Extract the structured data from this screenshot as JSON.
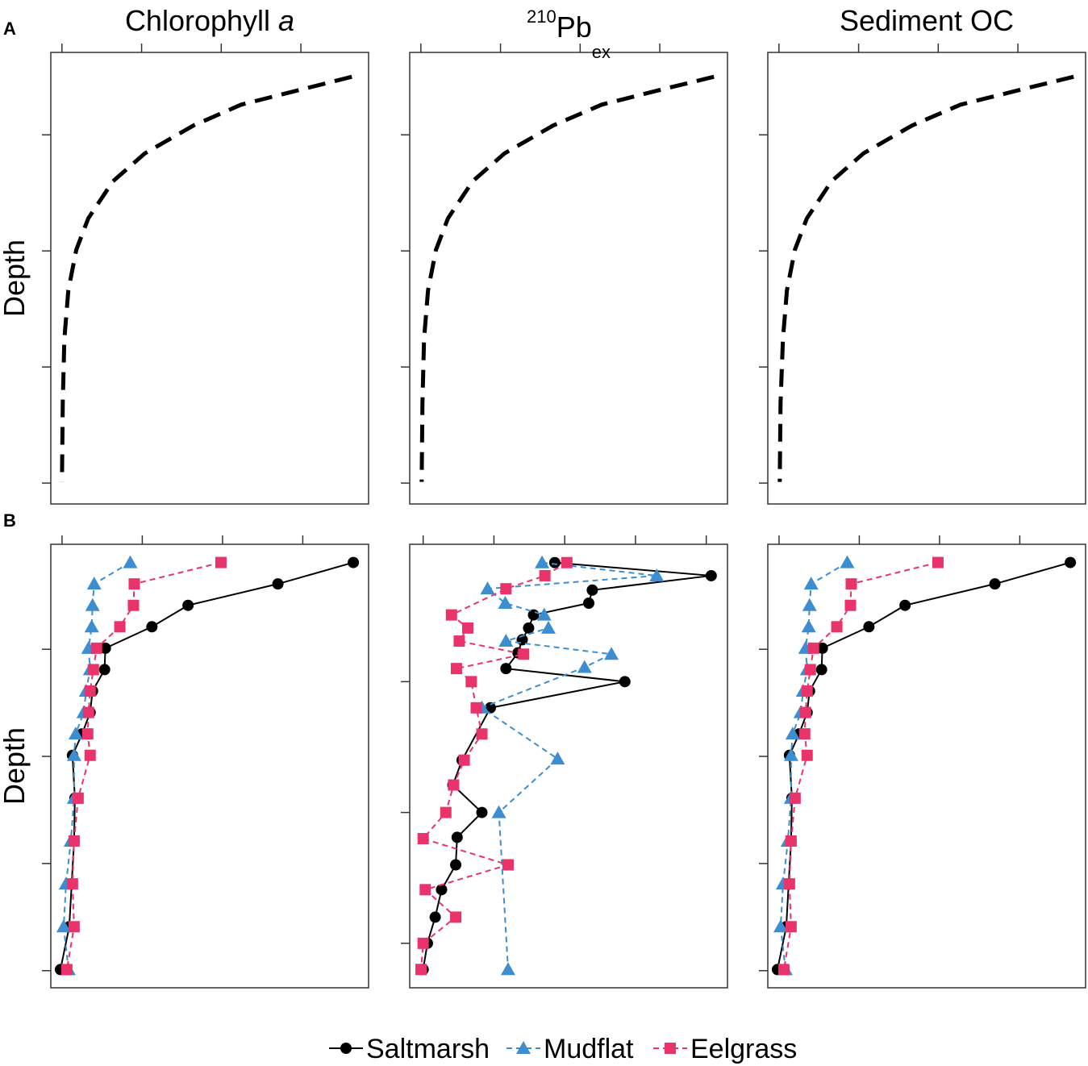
{
  "chart_data": [
    {
      "type": "line",
      "panel_label": "A",
      "title": [
        "Chlorophyll ",
        "a"
      ],
      "title_style": [
        "normal",
        "italic"
      ],
      "ylabel": "Depth",
      "xlim": [
        -0.14,
        3.85
      ],
      "xticks": [
        0,
        1,
        2,
        3
      ],
      "ylim": [
        0.29,
        4.18
      ],
      "yticks": [
        1,
        2,
        3,
        4
      ],
      "yinvert": true,
      "series": [
        {
          "color": "#000000",
          "dash": "22,12",
          "linewidth": 5,
          "x": [
            3.64,
            3.06,
            2.25,
            1.65,
            1.04,
            0.64,
            0.33,
            0.18,
            0.08,
            0.03,
            0.01,
            0
          ],
          "y": [
            0.5,
            0.6,
            0.74,
            0.92,
            1.16,
            1.4,
            1.72,
            1.99,
            2.34,
            2.76,
            3.31,
            3.99
          ]
        }
      ]
    },
    {
      "type": "line",
      "title": [
        "210",
        "Pb",
        "ex"
      ],
      "title_style": [
        "super",
        "normal",
        "sub"
      ],
      "xlim": [
        -0.14,
        3.85
      ],
      "xticks": [
        0,
        1,
        2,
        3
      ],
      "ylim": [
        0.29,
        4.18
      ],
      "yticks": [
        1,
        2,
        3,
        4
      ],
      "yinvert": true,
      "series": [
        {
          "color": "#000000",
          "dash": "22,12",
          "linewidth": 5,
          "x": [
            3.68,
            3.08,
            2.27,
            1.66,
            1.05,
            0.65,
            0.34,
            0.19,
            0.09,
            0.04,
            0.02,
            0.01
          ],
          "y": [
            0.5,
            0.6,
            0.74,
            0.92,
            1.16,
            1.4,
            1.72,
            1.99,
            2.34,
            2.76,
            3.31,
            3.99
          ]
        }
      ]
    },
    {
      "type": "line",
      "title": [
        "Sediment OC"
      ],
      "title_style": [
        "normal"
      ],
      "xlim": [
        -0.14,
        3.85
      ],
      "xticks": [
        0,
        1,
        2,
        3
      ],
      "ylim": [
        0.29,
        4.18
      ],
      "yticks": [
        1,
        2,
        3,
        4
      ],
      "yinvert": true,
      "series": [
        {
          "color": "#000000",
          "dash": "22,12",
          "linewidth": 5,
          "x": [
            3.7,
            3.1,
            2.28,
            1.67,
            1.06,
            0.66,
            0.35,
            0.2,
            0.1,
            0.05,
            0.02,
            0.01
          ],
          "y": [
            0.5,
            0.6,
            0.74,
            0.92,
            1.16,
            1.4,
            1.72,
            1.99,
            2.34,
            2.76,
            3.31,
            3.99
          ]
        }
      ]
    },
    {
      "type": "line",
      "panel_label": "B",
      "ylabel": "Depth",
      "xlim": [
        -0.14,
        3.82
      ],
      "xticks": [
        0,
        1,
        2,
        3
      ],
      "ylim": [
        0.02,
        4.16
      ],
      "yticks": [
        1,
        2,
        3,
        4
      ],
      "yinvert": true,
      "series": [
        {
          "name": "Saltmarsh",
          "color": "#000000",
          "marker": "circle",
          "dash": "none",
          "x": [
            3.63,
            2.69,
            1.57,
            1.12,
            0.54,
            0.53,
            0.38,
            0.35,
            0.25,
            0.13,
            0.16,
            0.15,
            0.12,
            0.09,
            -0.02
          ],
          "y": [
            0.19,
            0.39,
            0.59,
            0.79,
            0.99,
            1.19,
            1.39,
            1.59,
            1.79,
            1.99,
            2.39,
            2.79,
            3.19,
            3.59,
            3.99
          ]
        },
        {
          "name": "Mudflat",
          "color": "#3d8ed0",
          "marker": "triangle",
          "dash": "7,5",
          "x": [
            0.85,
            0.4,
            0.38,
            0.37,
            0.33,
            0.35,
            0.3,
            0.27,
            0.17,
            0.15,
            0.15,
            0.11,
            0.05,
            0.02,
            0.08
          ],
          "y": [
            0.19,
            0.39,
            0.59,
            0.79,
            0.99,
            1.19,
            1.39,
            1.59,
            1.79,
            1.99,
            2.39,
            2.79,
            3.19,
            3.59,
            3.99
          ]
        },
        {
          "name": "Eelgrass",
          "color": "#e8336b",
          "marker": "square",
          "dash": "7,5",
          "x": [
            1.98,
            0.9,
            0.89,
            0.72,
            0.43,
            0.39,
            0.35,
            0.33,
            0.32,
            0.35,
            0.2,
            0.15,
            0.13,
            0.15,
            0.06
          ],
          "y": [
            0.19,
            0.39,
            0.59,
            0.79,
            0.99,
            1.19,
            1.39,
            1.59,
            1.79,
            1.99,
            2.39,
            2.79,
            3.19,
            3.59,
            3.99
          ]
        }
      ]
    },
    {
      "type": "line",
      "xlim": [
        -0.19,
        4.3
      ],
      "xticks": [
        0,
        1,
        2,
        3,
        4
      ],
      "ylim": [
        -0.05,
        3.34
      ],
      "yticks": [
        1,
        2,
        3
      ],
      "yinvert": true,
      "series": [
        {
          "name": "Saltmarsh",
          "color": "#000000",
          "marker": "circle",
          "dash": "none",
          "x": [
            1.86,
            4.07,
            2.39,
            2.34,
            1.56,
            1.49,
            1.4,
            1.34,
            1.17,
            2.85,
            0.95,
            0.55,
            0.42,
            0.83,
            0.48,
            0.46,
            0.26,
            0.17,
            0.06,
            0
          ],
          "y": [
            0.09,
            0.19,
            0.3,
            0.4,
            0.49,
            0.59,
            0.68,
            0.78,
            0.9,
            1.0,
            1.2,
            1.6,
            1.79,
            2.0,
            2.19,
            2.4,
            2.59,
            2.8,
            3.0,
            3.2
          ]
        },
        {
          "name": "Mudflat",
          "color": "#3d8ed0",
          "marker": "triangle",
          "dash": "7,5",
          "x": [
            1.68,
            3.3,
            0.91,
            1.16,
            1.71,
            1.77,
            1.17,
            2.66,
            2.28,
            0.83,
            1.9,
            1.07,
            1.2
          ],
          "y": [
            0.09,
            0.19,
            0.29,
            0.4,
            0.49,
            0.59,
            0.69,
            0.79,
            0.89,
            1.2,
            1.59,
            2.0,
            3.2
          ]
        },
        {
          "name": "Eelgrass",
          "color": "#e8336b",
          "marker": "square",
          "dash": "7,5",
          "x": [
            2.03,
            1.72,
            1.17,
            0.4,
            0.63,
            0.51,
            1.42,
            0.47,
            0.68,
            0.75,
            0.83,
            0.58,
            0.43,
            0.32,
            0,
            1.2,
            0.03,
            0.46,
            0,
            -0.03
          ],
          "y": [
            0.09,
            0.19,
            0.29,
            0.49,
            0.59,
            0.69,
            0.79,
            0.9,
            1.0,
            1.2,
            1.4,
            1.6,
            1.79,
            2.0,
            2.2,
            2.4,
            2.59,
            2.8,
            3.0,
            3.2
          ]
        }
      ]
    },
    {
      "type": "line",
      "xlim": [
        -0.14,
        3.82
      ],
      "xticks": [
        0,
        1,
        2,
        3
      ],
      "ylim": [
        0.02,
        4.16
      ],
      "yticks": [
        1,
        2,
        3,
        4
      ],
      "yinvert": true,
      "series": [
        {
          "name": "Saltmarsh",
          "color": "#000000",
          "marker": "circle",
          "dash": "none",
          "x": [
            3.63,
            2.69,
            1.57,
            1.12,
            0.54,
            0.53,
            0.38,
            0.35,
            0.25,
            0.13,
            0.16,
            0.15,
            0.12,
            0.09,
            -0.02
          ],
          "y": [
            0.19,
            0.39,
            0.59,
            0.79,
            0.99,
            1.19,
            1.39,
            1.59,
            1.79,
            1.99,
            2.39,
            2.79,
            3.19,
            3.59,
            3.99
          ]
        },
        {
          "name": "Mudflat",
          "color": "#3d8ed0",
          "marker": "triangle",
          "dash": "7,5",
          "x": [
            0.85,
            0.4,
            0.38,
            0.37,
            0.33,
            0.35,
            0.3,
            0.27,
            0.17,
            0.15,
            0.15,
            0.11,
            0.05,
            0.02,
            0.08
          ],
          "y": [
            0.19,
            0.39,
            0.59,
            0.79,
            0.99,
            1.19,
            1.39,
            1.59,
            1.79,
            1.99,
            2.39,
            2.79,
            3.19,
            3.59,
            3.99
          ]
        },
        {
          "name": "Eelgrass",
          "color": "#e8336b",
          "marker": "square",
          "dash": "7,5",
          "x": [
            1.98,
            0.9,
            0.89,
            0.72,
            0.43,
            0.39,
            0.35,
            0.33,
            0.32,
            0.35,
            0.2,
            0.15,
            0.13,
            0.15,
            0.06
          ],
          "y": [
            0.19,
            0.39,
            0.59,
            0.79,
            0.99,
            1.19,
            1.39,
            1.59,
            1.79,
            1.99,
            2.39,
            2.79,
            3.19,
            3.59,
            3.99
          ]
        }
      ]
    }
  ],
  "legend_source": 3
}
